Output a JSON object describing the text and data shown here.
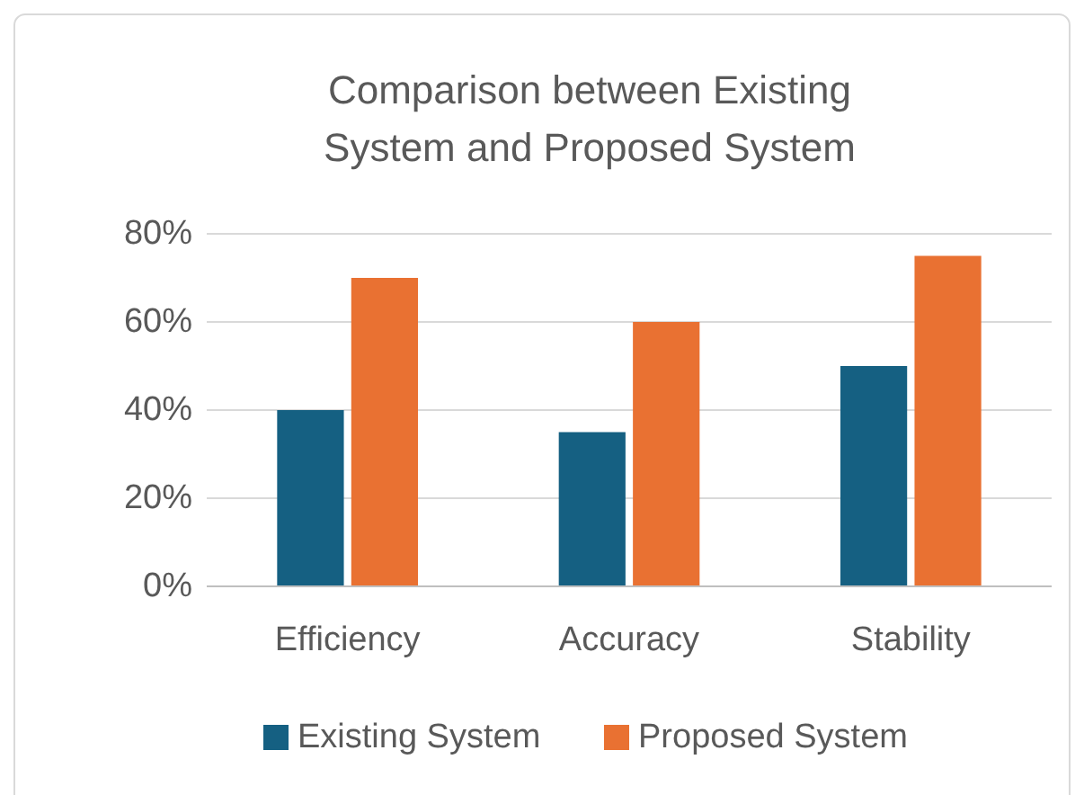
{
  "chart_data": {
    "type": "bar",
    "title": "Comparison between Existing System and Proposed System",
    "categories": [
      "Efficiency",
      "Accuracy",
      "Stability"
    ],
    "series": [
      {
        "name": "Existing System",
        "color": "#156082",
        "values": [
          40,
          35,
          50
        ]
      },
      {
        "name": "Proposed System",
        "color": "#e97132",
        "values": [
          70,
          60,
          75
        ]
      }
    ],
    "ylim": [
      0,
      80
    ],
    "yticks": [
      {
        "value": 0,
        "label": "0%"
      },
      {
        "value": 20,
        "label": "20%"
      },
      {
        "value": 40,
        "label": "40%"
      },
      {
        "value": 60,
        "label": "60%"
      },
      {
        "value": 80,
        "label": "80%"
      }
    ],
    "grid": "y",
    "legend": "bottom"
  }
}
